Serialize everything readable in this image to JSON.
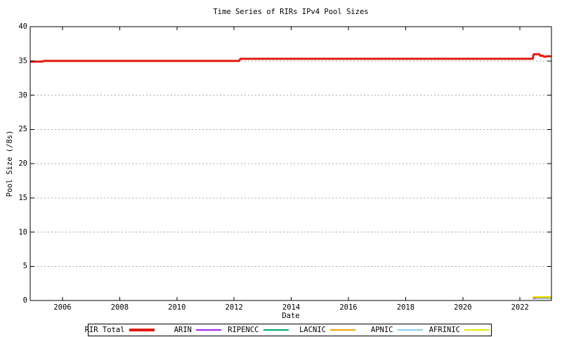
{
  "title": "Time Series of RIRs IPv4 Pool Sizes",
  "background_color": "#ffffff",
  "grid_color": "#a8a8a8",
  "axis_color": "#000000",
  "chart_data": {
    "type": "line",
    "title": "Time Series of RIRs IPv4 Pool Sizes",
    "xlabel": "Date",
    "ylabel": "Pool Size (/8s)",
    "xlim": [
      2004.87,
      2023.1
    ],
    "ylim": [
      0,
      40
    ],
    "x_ticks": [
      2006,
      2008,
      2010,
      2012,
      2014,
      2016,
      2018,
      2020,
      2022
    ],
    "y_ticks": [
      0,
      5,
      10,
      15,
      20,
      25,
      30,
      35,
      40
    ],
    "grid": "horizontal-dotted",
    "legend_position": "bottom",
    "series": [
      {
        "name": "RIR Total",
        "color": "#e21a11",
        "width": 3,
        "points": [
          [
            2004.87,
            34.9
          ],
          [
            2005.3,
            34.9
          ],
          [
            2005.35,
            35.0
          ],
          [
            2012.18,
            35.0
          ],
          [
            2012.22,
            35.3
          ],
          [
            2022.45,
            35.3
          ],
          [
            2022.47,
            35.97
          ],
          [
            2022.68,
            35.97
          ],
          [
            2022.72,
            35.7
          ],
          [
            2022.78,
            35.8
          ],
          [
            2022.85,
            35.6
          ],
          [
            2022.95,
            35.68
          ],
          [
            2023.1,
            35.68
          ]
        ]
      },
      {
        "name": "ARIN",
        "color": "#a020f0",
        "width": 1.5,
        "points": [
          [
            2022.45,
            0.3
          ],
          [
            2022.55,
            0.3
          ]
        ]
      },
      {
        "name": "RIPENCC",
        "color": "#00aa77",
        "width": 1.5,
        "points": [
          [
            2022.45,
            0.42
          ],
          [
            2023.1,
            0.42
          ]
        ]
      },
      {
        "name": "LACNIC",
        "color": "#f0a30a",
        "width": 1.5,
        "points": [
          [
            2022.45,
            0.4
          ],
          [
            2023.1,
            0.4
          ]
        ]
      },
      {
        "name": "APNIC",
        "color": "#87ceeb",
        "width": 1.5,
        "points": [
          [
            2022.55,
            0.26
          ],
          [
            2023.1,
            0.26
          ]
        ]
      },
      {
        "name": "AFRINIC",
        "color": "#e8e800",
        "width": 1.5,
        "points": [
          [
            2022.45,
            0.55
          ],
          [
            2023.1,
            0.55
          ]
        ]
      }
    ]
  }
}
